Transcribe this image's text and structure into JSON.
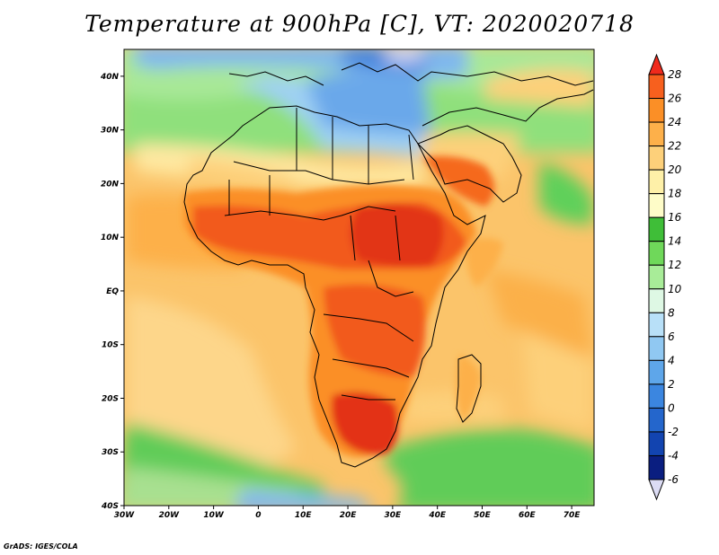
{
  "title": "Temperature at 900hPa [C], VT: 2020020718",
  "credit": "GrADS: IGES/COLA",
  "map": {
    "lon_range": [
      -30,
      75
    ],
    "lat_range": [
      -40,
      45
    ],
    "lat_labels": [
      "40N",
      "30N",
      "20N",
      "10N",
      "EQ",
      "10S",
      "20S",
      "30S",
      "40S"
    ],
    "lon_labels": [
      "30W",
      "20W",
      "10W",
      "0",
      "10E",
      "20E",
      "30E",
      "40E",
      "50E",
      "60E",
      "70E"
    ]
  },
  "colorbar": {
    "labels": [
      "28",
      "26",
      "24",
      "22",
      "20",
      "18",
      "16",
      "14",
      "12",
      "10",
      "8",
      "6",
      "4",
      "2",
      "0",
      "-2",
      "-4",
      "-6"
    ],
    "colors": [
      "#f02a1c",
      "#f7601e",
      "#fb8f26",
      "#fdb04a",
      "#fdd07a",
      "#fef0a8",
      "#fefcc8",
      "#3fbe38",
      "#6fd85a",
      "#a8ec98",
      "#def8e4",
      "#b8e0f8",
      "#90c8f2",
      "#5ea6ea",
      "#3b86e0",
      "#2466cc",
      "#1244b0",
      "#0a1e80",
      "#dcdcf4"
    ]
  }
}
